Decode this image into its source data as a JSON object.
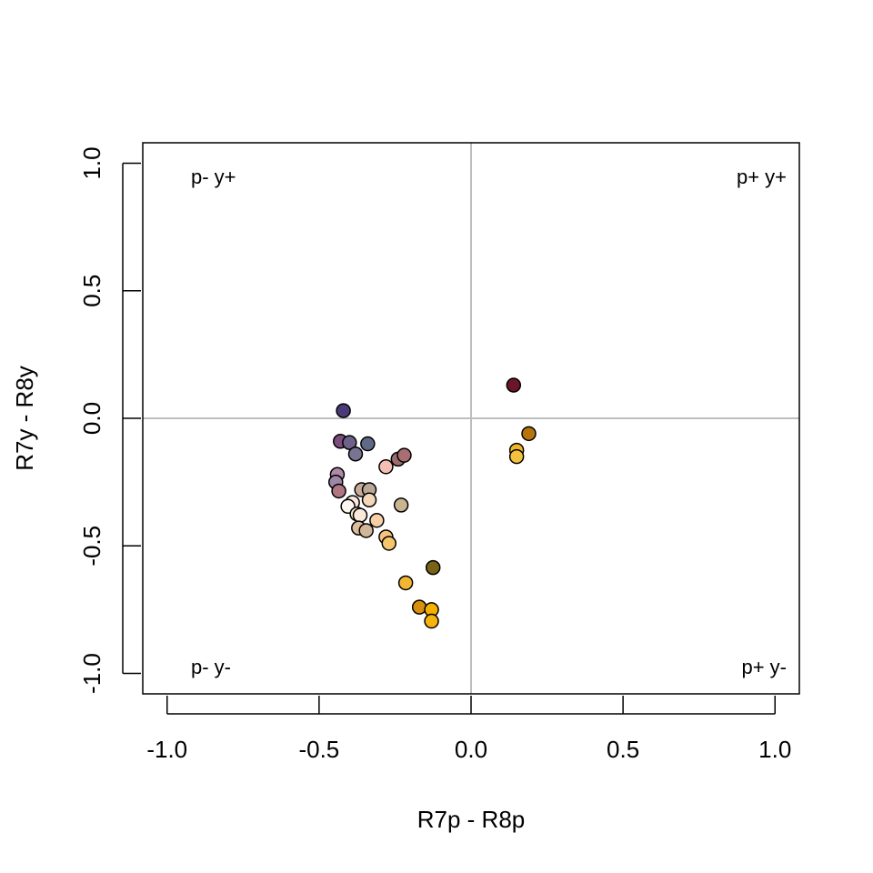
{
  "chart_data": {
    "type": "scatter",
    "title": "",
    "xlabel": "R7p - R8p",
    "ylabel": "R7y - R8y",
    "xlim": [
      -1.08,
      1.08
    ],
    "ylim": [
      -1.08,
      1.08
    ],
    "xticks": [
      -1.0,
      -0.5,
      0.0,
      0.5,
      1.0
    ],
    "yticks": [
      -1.0,
      -0.5,
      0.0,
      0.5,
      1.0
    ],
    "xtick_labels": [
      "-1.0",
      "-0.5",
      "0.0",
      "0.5",
      "1.0"
    ],
    "ytick_labels": [
      "-1.0",
      "-0.5",
      "0.0",
      "0.5",
      "1.0"
    ],
    "reference_lines": {
      "x": 0,
      "y": 0,
      "color": "#bebebe"
    },
    "grid": false,
    "quadrant_labels": {
      "top_left": "p- y+",
      "top_right": "p+ y+",
      "bottom_left": "p- y-",
      "bottom_right": "p+ y-"
    },
    "points": [
      {
        "x": 0.14,
        "y": 0.13,
        "color": "#6b1528"
      },
      {
        "x": 0.19,
        "y": -0.06,
        "color": "#b8740c"
      },
      {
        "x": 0.15,
        "y": -0.125,
        "color": "#f0b52a"
      },
      {
        "x": 0.15,
        "y": -0.15,
        "color": "#f3c13e"
      },
      {
        "x": -0.42,
        "y": 0.03,
        "color": "#4b3a78"
      },
      {
        "x": -0.43,
        "y": -0.09,
        "color": "#7c4d7c"
      },
      {
        "x": -0.4,
        "y": -0.095,
        "color": "#6e628a"
      },
      {
        "x": -0.34,
        "y": -0.1,
        "color": "#5f6a86"
      },
      {
        "x": -0.38,
        "y": -0.14,
        "color": "#787491"
      },
      {
        "x": -0.24,
        "y": -0.16,
        "color": "#9c6c6c"
      },
      {
        "x": -0.22,
        "y": -0.145,
        "color": "#a86e72"
      },
      {
        "x": -0.28,
        "y": -0.19,
        "color": "#f2bfb2"
      },
      {
        "x": -0.44,
        "y": -0.22,
        "color": "#b089a6"
      },
      {
        "x": -0.445,
        "y": -0.25,
        "color": "#9c87a6"
      },
      {
        "x": -0.435,
        "y": -0.285,
        "color": "#b07582"
      },
      {
        "x": -0.36,
        "y": -0.28,
        "color": "#c8ab96"
      },
      {
        "x": -0.335,
        "y": -0.28,
        "color": "#b8a898"
      },
      {
        "x": -0.335,
        "y": -0.32,
        "color": "#f5d6b6"
      },
      {
        "x": -0.39,
        "y": -0.33,
        "color": "#fbe8dc"
      },
      {
        "x": -0.405,
        "y": -0.345,
        "color": "#fdf6ef"
      },
      {
        "x": -0.23,
        "y": -0.34,
        "color": "#c8b48e"
      },
      {
        "x": -0.375,
        "y": -0.375,
        "color": "#fbe6ce"
      },
      {
        "x": -0.365,
        "y": -0.38,
        "color": "#fbeada"
      },
      {
        "x": -0.31,
        "y": -0.4,
        "color": "#f6cfa6"
      },
      {
        "x": -0.37,
        "y": -0.43,
        "color": "#dcbc9a"
      },
      {
        "x": -0.345,
        "y": -0.44,
        "color": "#d2b699"
      },
      {
        "x": -0.28,
        "y": -0.465,
        "color": "#f7c47e"
      },
      {
        "x": -0.27,
        "y": -0.49,
        "color": "#f6c66c"
      },
      {
        "x": -0.125,
        "y": -0.585,
        "color": "#7a6216"
      },
      {
        "x": -0.215,
        "y": -0.645,
        "color": "#f2b634"
      },
      {
        "x": -0.17,
        "y": -0.74,
        "color": "#d7900e"
      },
      {
        "x": -0.13,
        "y": -0.75,
        "color": "#f6b000"
      },
      {
        "x": -0.13,
        "y": -0.795,
        "color": "#f7b40e"
      }
    ]
  }
}
